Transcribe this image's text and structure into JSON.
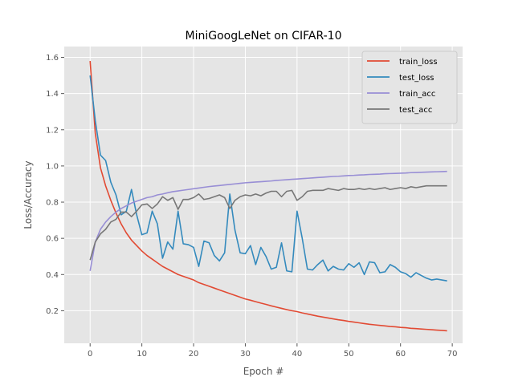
{
  "chart_data": {
    "type": "line",
    "title": "MiniGoogLeNet on CIFAR-10",
    "xlabel": "Epoch #",
    "ylabel": "Loss/Accuracy",
    "xlim": [
      -5,
      72
    ],
    "ylim": [
      0.02,
      1.66
    ],
    "xticks": [
      0,
      10,
      20,
      30,
      40,
      50,
      60,
      70
    ],
    "yticks": [
      0.2,
      0.4,
      0.6,
      0.8,
      1.0,
      1.2,
      1.4,
      1.6
    ],
    "ytick_labels": [
      "0.2",
      "0.4",
      "0.6",
      "0.8",
      "1.0",
      "1.2",
      "1.4",
      "1.6"
    ],
    "grid": true,
    "legend_position": "top-right",
    "series": [
      {
        "name": "train_loss",
        "color": "#E24A33",
        "values": [
          1.58,
          1.18,
          0.99,
          0.89,
          0.81,
          0.74,
          0.68,
          0.63,
          0.59,
          0.56,
          0.53,
          0.505,
          0.485,
          0.465,
          0.445,
          0.43,
          0.415,
          0.4,
          0.39,
          0.38,
          0.37,
          0.355,
          0.345,
          0.335,
          0.325,
          0.315,
          0.305,
          0.295,
          0.285,
          0.275,
          0.265,
          0.258,
          0.25,
          0.242,
          0.235,
          0.227,
          0.22,
          0.213,
          0.206,
          0.2,
          0.195,
          0.188,
          0.182,
          0.176,
          0.17,
          0.165,
          0.16,
          0.155,
          0.15,
          0.146,
          0.141,
          0.137,
          0.133,
          0.129,
          0.125,
          0.122,
          0.119,
          0.116,
          0.113,
          0.111,
          0.108,
          0.106,
          0.103,
          0.101,
          0.099,
          0.097,
          0.095,
          0.093,
          0.091,
          0.089
        ]
      },
      {
        "name": "test_loss",
        "color": "#348ABD",
        "values": [
          1.5,
          1.25,
          1.06,
          1.03,
          0.91,
          0.84,
          0.73,
          0.75,
          0.87,
          0.73,
          0.62,
          0.63,
          0.75,
          0.68,
          0.49,
          0.58,
          0.54,
          0.75,
          0.57,
          0.565,
          0.55,
          0.445,
          0.585,
          0.575,
          0.505,
          0.475,
          0.52,
          0.845,
          0.645,
          0.52,
          0.515,
          0.56,
          0.455,
          0.55,
          0.5,
          0.43,
          0.44,
          0.575,
          0.42,
          0.415,
          0.75,
          0.6,
          0.43,
          0.425,
          0.455,
          0.48,
          0.42,
          0.445,
          0.43,
          0.425,
          0.46,
          0.44,
          0.465,
          0.4,
          0.47,
          0.465,
          0.41,
          0.415,
          0.455,
          0.44,
          0.415,
          0.405,
          0.385,
          0.41,
          0.395,
          0.38,
          0.37,
          0.375,
          0.37,
          0.365
        ]
      },
      {
        "name": "train_acc",
        "color": "#988ED5",
        "values": [
          0.42,
          0.58,
          0.65,
          0.69,
          0.72,
          0.745,
          0.765,
          0.78,
          0.795,
          0.805,
          0.815,
          0.825,
          0.83,
          0.84,
          0.845,
          0.852,
          0.858,
          0.862,
          0.866,
          0.87,
          0.874,
          0.878,
          0.882,
          0.886,
          0.889,
          0.892,
          0.895,
          0.898,
          0.901,
          0.904,
          0.907,
          0.909,
          0.911,
          0.913,
          0.915,
          0.917,
          0.92,
          0.922,
          0.924,
          0.926,
          0.928,
          0.93,
          0.932,
          0.934,
          0.936,
          0.938,
          0.94,
          0.942,
          0.943,
          0.945,
          0.947,
          0.948,
          0.95,
          0.951,
          0.953,
          0.954,
          0.955,
          0.957,
          0.958,
          0.959,
          0.96,
          0.961,
          0.963,
          0.964,
          0.965,
          0.966,
          0.967,
          0.968,
          0.969,
          0.97
        ]
      },
      {
        "name": "test_acc",
        "color": "#777777",
        "values": [
          0.48,
          0.58,
          0.625,
          0.65,
          0.69,
          0.705,
          0.745,
          0.745,
          0.72,
          0.75,
          0.785,
          0.79,
          0.765,
          0.79,
          0.83,
          0.81,
          0.825,
          0.76,
          0.815,
          0.815,
          0.825,
          0.845,
          0.815,
          0.82,
          0.83,
          0.84,
          0.825,
          0.765,
          0.81,
          0.83,
          0.84,
          0.835,
          0.845,
          0.835,
          0.85,
          0.86,
          0.86,
          0.83,
          0.86,
          0.865,
          0.81,
          0.83,
          0.86,
          0.865,
          0.865,
          0.865,
          0.875,
          0.87,
          0.865,
          0.875,
          0.87,
          0.87,
          0.875,
          0.87,
          0.875,
          0.87,
          0.875,
          0.88,
          0.87,
          0.875,
          0.88,
          0.875,
          0.885,
          0.88,
          0.885,
          0.89,
          0.89,
          0.89,
          0.89,
          0.89
        ]
      }
    ]
  },
  "colors": {
    "plot_background": "#E5E5E5",
    "grid": "#FFFFFF",
    "axis_text": "#555555"
  }
}
